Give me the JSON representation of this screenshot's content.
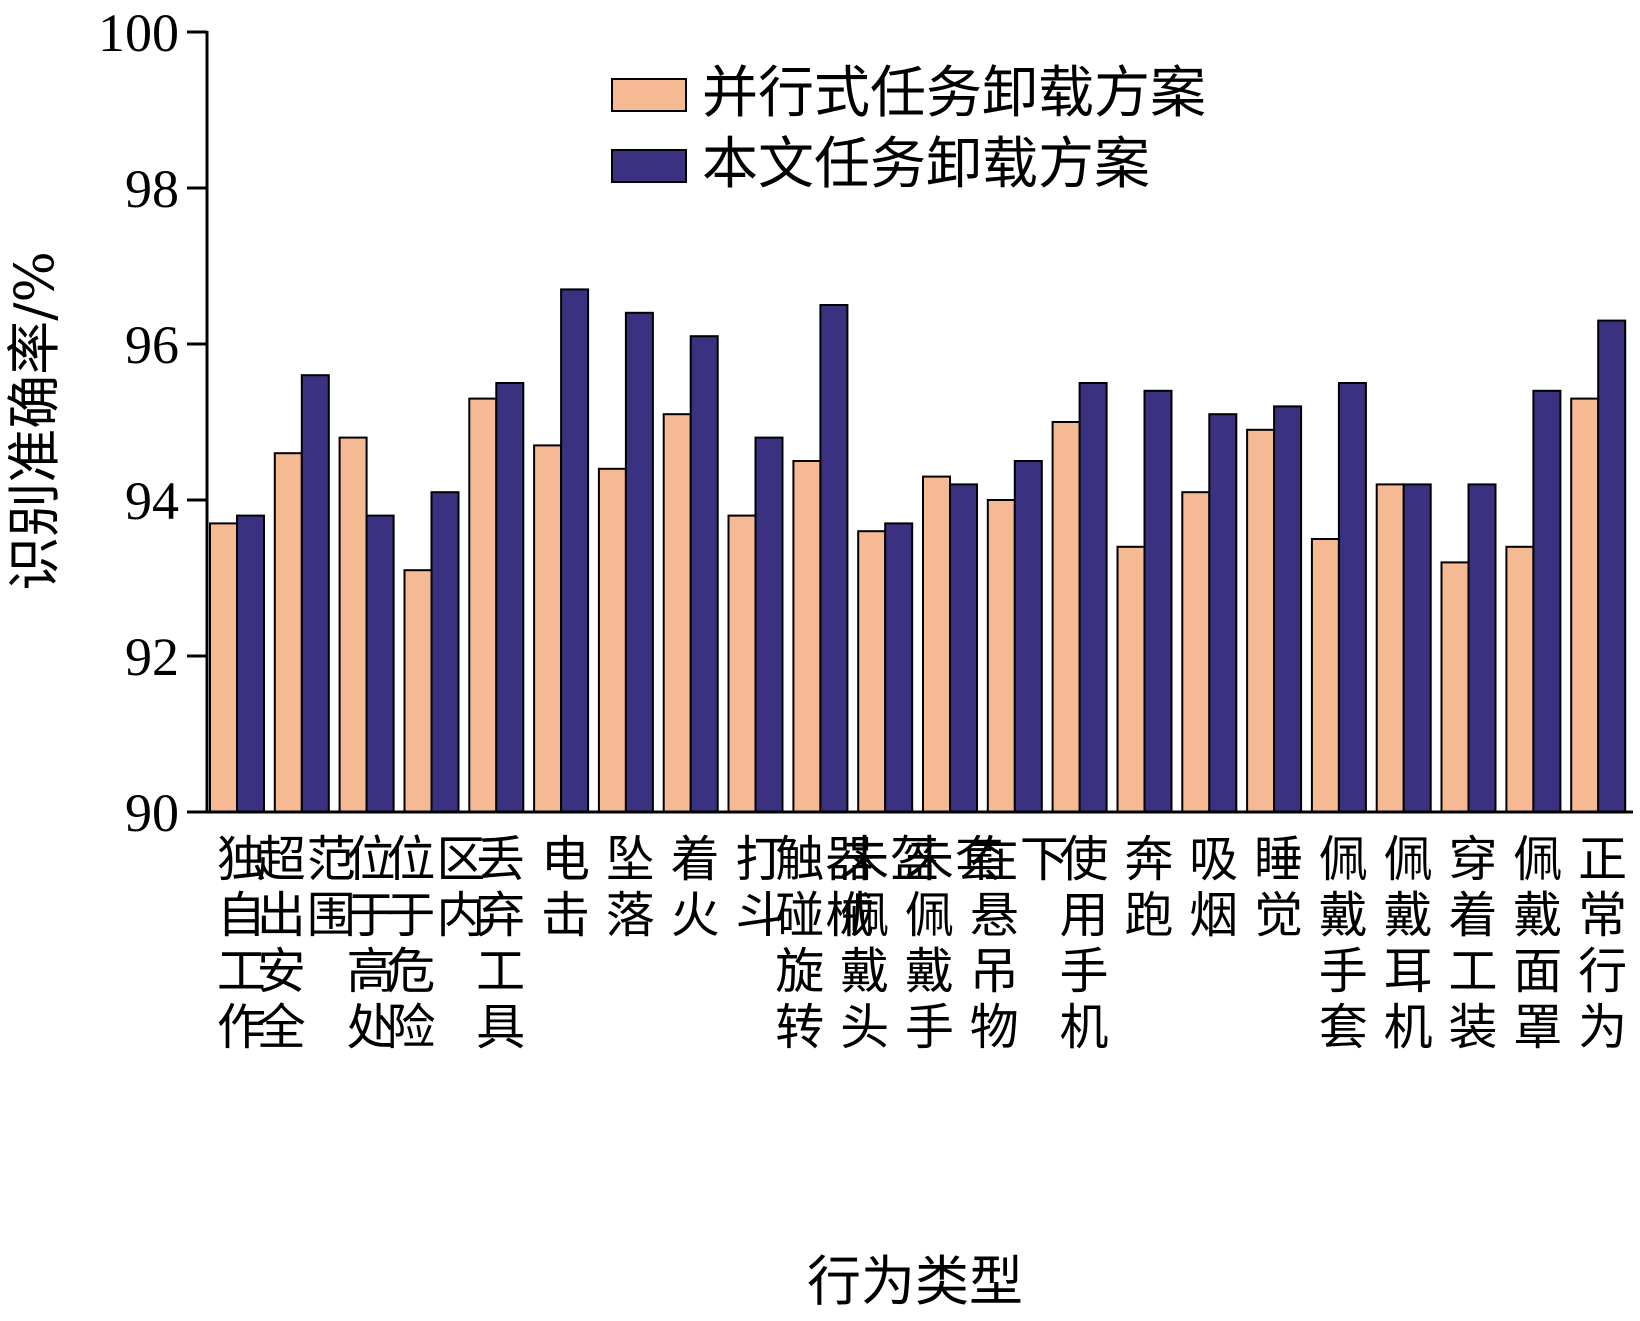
{
  "chart_data": {
    "type": "bar",
    "title": "",
    "xlabel": "行为类型",
    "ylabel": "识别准确率/%",
    "ylim": [
      90,
      100
    ],
    "yticks": [
      90,
      92,
      94,
      96,
      98,
      100
    ],
    "legend_position": "top-right",
    "grid": false,
    "categories": [
      "独自工作",
      "超出安全范围",
      "位于高处",
      "位于危险区内",
      "丢弃工具",
      "电击",
      "坠落",
      "着火",
      "打斗",
      "触碰旋转器械",
      "未佩戴头盔",
      "未佩戴手套",
      "在悬吊物下",
      "使用手机",
      "奔跑",
      "吸烟",
      "睡觉",
      "佩戴手套",
      "佩戴耳机",
      "穿着工装",
      "佩戴面罩",
      "正常行为"
    ],
    "series": [
      {
        "name": "并行式任务卸载方案",
        "color": "#F5B994",
        "values": [
          93.7,
          94.6,
          94.8,
          93.1,
          95.3,
          94.7,
          94.4,
          95.1,
          93.8,
          94.5,
          93.6,
          94.3,
          94.0,
          95.0,
          93.4,
          94.1,
          94.9,
          93.5,
          94.2,
          93.2,
          93.4,
          95.3
        ]
      },
      {
        "name": "本文任务卸载方案",
        "color": "#3A3180",
        "values": [
          93.8,
          95.6,
          93.8,
          94.1,
          95.5,
          96.7,
          96.4,
          96.1,
          94.8,
          96.5,
          93.7,
          94.2,
          94.5,
          95.5,
          95.4,
          95.1,
          95.2,
          95.5,
          94.2,
          94.2,
          95.4,
          96.3
        ]
      }
    ]
  }
}
